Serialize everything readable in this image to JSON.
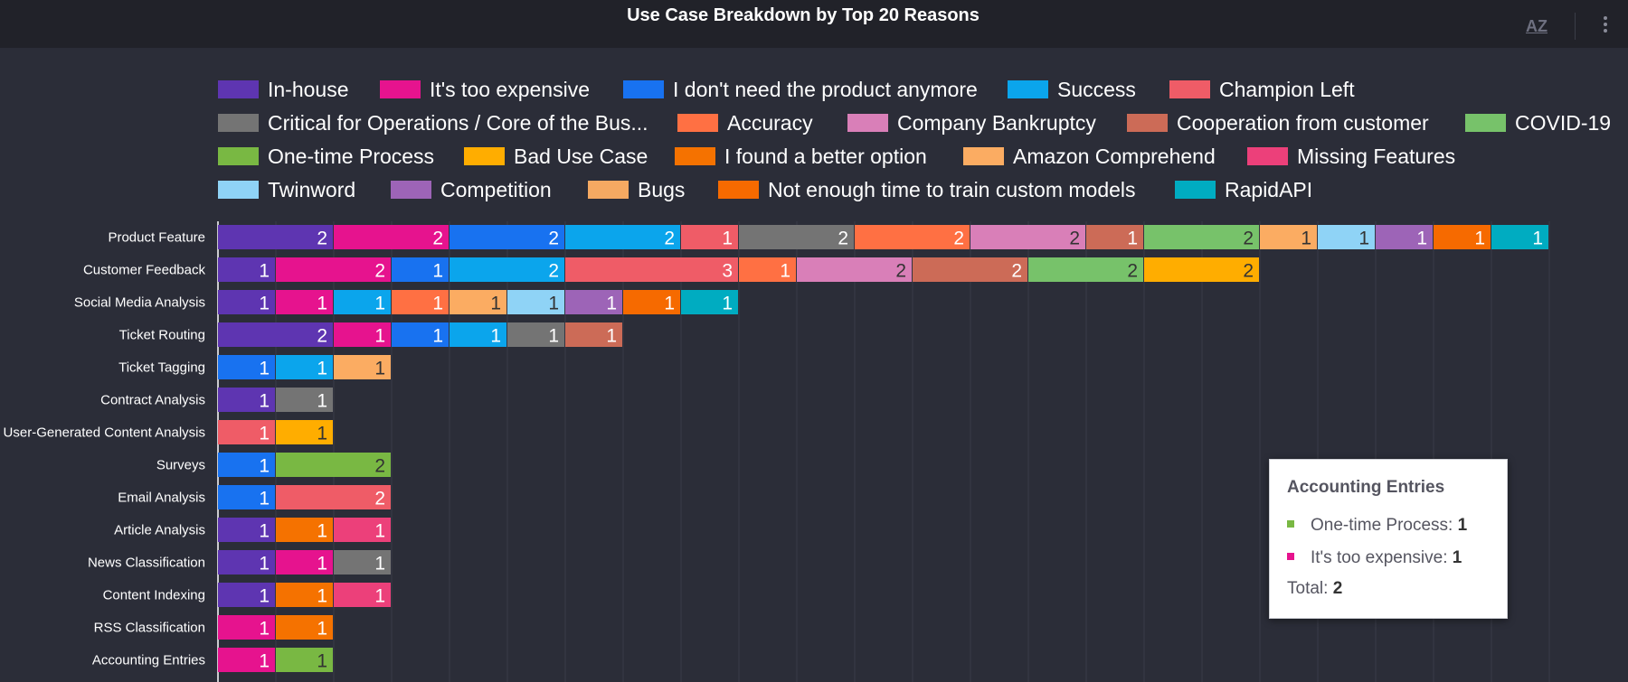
{
  "chart_data": {
    "type": "bar",
    "orientation": "horizontal",
    "stacked": true,
    "title": "Use Case Breakdown by Top 20 Reasons",
    "xlabel": "",
    "ylabel": "",
    "xlim": [
      0,
      23
    ],
    "grid": true,
    "legend_position": "top",
    "categories": [
      "Product Feature",
      "Customer Feedback",
      "Social Media Analysis",
      "Ticket Routing",
      "Ticket Tagging",
      "Contract Analysis",
      "User-Generated Content Analysis",
      "Surveys",
      "Email Analysis",
      "Article Analysis",
      "News Classification",
      "Content Indexing",
      "RSS Classification",
      "Accounting Entries"
    ],
    "series": [
      {
        "name": "In-house",
        "color": "#5e35b1",
        "values": [
          2,
          1,
          1,
          2,
          0,
          1,
          0,
          0,
          0,
          1,
          1,
          1,
          0,
          0
        ]
      },
      {
        "name": "It's too expensive",
        "color": "#e6138e",
        "values": [
          2,
          2,
          1,
          1,
          0,
          0,
          0,
          0,
          0,
          0,
          1,
          0,
          1,
          1
        ]
      },
      {
        "name": "I don't need the product anymore",
        "color": "#1872f0",
        "values": [
          2,
          1,
          0,
          1,
          1,
          0,
          0,
          1,
          1,
          0,
          0,
          0,
          0,
          0
        ]
      },
      {
        "name": "Success",
        "color": "#0ba5ec",
        "values": [
          2,
          2,
          1,
          1,
          1,
          0,
          0,
          0,
          0,
          0,
          0,
          0,
          0,
          0
        ]
      },
      {
        "name": "Champion Left",
        "color": "#ef5c67",
        "values": [
          1,
          3,
          0,
          0,
          0,
          0,
          1,
          0,
          2,
          0,
          0,
          0,
          0,
          0
        ]
      },
      {
        "name": "Critical for Operations / Core of the Bus...",
        "color": "#747474",
        "values": [
          2,
          0,
          0,
          1,
          0,
          1,
          0,
          0,
          0,
          0,
          1,
          0,
          0,
          0
        ]
      },
      {
        "name": "Accuracy",
        "color": "#ff7043",
        "values": [
          2,
          1,
          1,
          0,
          0,
          0,
          0,
          0,
          0,
          0,
          0,
          0,
          0,
          0
        ]
      },
      {
        "name": "Company Bankruptcy",
        "color": "#d97fb8",
        "values": [
          2,
          2,
          0,
          0,
          0,
          0,
          0,
          0,
          0,
          0,
          0,
          0,
          0,
          0
        ]
      },
      {
        "name": "Cooperation from customer",
        "color": "#cc6b57",
        "values": [
          1,
          2,
          0,
          1,
          0,
          0,
          0,
          0,
          0,
          0,
          0,
          0,
          0,
          0
        ]
      },
      {
        "name": "COVID-19",
        "color": "#77c26a",
        "values": [
          2,
          2,
          0,
          0,
          0,
          0,
          0,
          0,
          0,
          0,
          0,
          0,
          0,
          0
        ]
      },
      {
        "name": "One-time Process",
        "color": "#79b843",
        "values": [
          0,
          0,
          0,
          0,
          0,
          0,
          0,
          2,
          0,
          0,
          0,
          0,
          0,
          1
        ]
      },
      {
        "name": "Bad Use Case",
        "color": "#ffad00",
        "values": [
          0,
          2,
          0,
          0,
          0,
          0,
          1,
          0,
          0,
          0,
          0,
          0,
          0,
          0
        ]
      },
      {
        "name": "I found a better option",
        "color": "#f57200",
        "values": [
          0,
          0,
          0,
          0,
          0,
          0,
          0,
          0,
          0,
          1,
          0,
          1,
          1,
          0
        ]
      },
      {
        "name": "Amazon Comprehend",
        "color": "#fbac62",
        "values": [
          1,
          0,
          1,
          0,
          1,
          0,
          0,
          0,
          0,
          0,
          0,
          0,
          0,
          0
        ]
      },
      {
        "name": "Missing Features",
        "color": "#ec407a",
        "values": [
          0,
          0,
          0,
          0,
          0,
          0,
          0,
          0,
          0,
          1,
          0,
          1,
          0,
          0
        ]
      },
      {
        "name": "Twinword",
        "color": "#8fd3f6",
        "values": [
          1,
          0,
          1,
          0,
          0,
          0,
          0,
          0,
          0,
          0,
          0,
          0,
          0,
          0
        ]
      },
      {
        "name": "Competition",
        "color": "#9d64b7",
        "values": [
          1,
          0,
          1,
          0,
          0,
          0,
          0,
          0,
          0,
          0,
          0,
          0,
          0,
          0
        ]
      },
      {
        "name": "Bugs",
        "color": "#f5a962",
        "values": [
          0,
          0,
          0,
          0,
          0,
          0,
          0,
          0,
          0,
          0,
          0,
          0,
          0,
          0
        ]
      },
      {
        "name": "Not enough time to train custom models",
        "color": "#f66a00",
        "values": [
          1,
          0,
          1,
          0,
          0,
          0,
          0,
          0,
          0,
          0,
          0,
          0,
          0,
          0
        ]
      },
      {
        "name": "RapidAPI",
        "color": "#00acc1",
        "values": [
          1,
          0,
          1,
          0,
          0,
          0,
          0,
          0,
          0,
          0,
          0,
          0,
          0,
          0
        ]
      }
    ],
    "stack_order": [
      [
        "In-house",
        "It's too expensive",
        "I don't need the product anymore",
        "Success",
        "Champion Left",
        "Critical for Operations / Core of the Bus...",
        "Accuracy",
        "Company Bankruptcy",
        "Cooperation from customer",
        "COVID-19",
        "Amazon Comprehend",
        "Twinword",
        "Competition",
        "Not enough time to train custom models",
        "RapidAPI"
      ],
      [
        "In-house",
        "It's too expensive",
        "I don't need the product anymore",
        "Success",
        "Champion Left",
        "Accuracy",
        "Company Bankruptcy",
        "Cooperation from customer",
        "COVID-19",
        "Bad Use Case"
      ],
      [
        "In-house",
        "It's too expensive",
        "Success",
        "Accuracy",
        "Amazon Comprehend",
        "Twinword",
        "Competition",
        "Not enough time to train custom models",
        "RapidAPI"
      ],
      [
        "In-house",
        "It's too expensive",
        "I don't need the product anymore",
        "Success",
        "Critical for Operations / Core of the Bus...",
        "Cooperation from customer"
      ],
      [
        "I don't need the product anymore",
        "Success",
        "Amazon Comprehend"
      ],
      [
        "In-house",
        "Critical for Operations / Core of the Bus..."
      ],
      [
        "Champion Left",
        "Bad Use Case"
      ],
      [
        "I don't need the product anymore",
        "One-time Process"
      ],
      [
        "I don't need the product anymore",
        "Champion Left"
      ],
      [
        "In-house",
        "I found a better option",
        "Missing Features"
      ],
      [
        "In-house",
        "It's too expensive",
        "Critical for Operations / Core of the Bus..."
      ],
      [
        "In-house",
        "I found a better option",
        "Missing Features"
      ],
      [
        "It's too expensive",
        "I found a better option"
      ],
      [
        "It's too expensive",
        "One-time Process"
      ]
    ],
    "label_colors": {
      "light": "#333333",
      "dark": "#ffffff"
    },
    "gridline_color": "#3a3c48"
  },
  "header": {
    "title": "Use Case Breakdown by Top 20 Reasons",
    "sort_label": "AZ",
    "bg": "#212229"
  },
  "tooltip": {
    "title": "Accounting Entries",
    "rows": [
      {
        "name": "One-time Process:",
        "value": "1",
        "color": "#79b843"
      },
      {
        "name": "It's too expensive:",
        "value": "1",
        "color": "#e6138e"
      }
    ],
    "total_label": "Total:",
    "total_value": "2"
  }
}
